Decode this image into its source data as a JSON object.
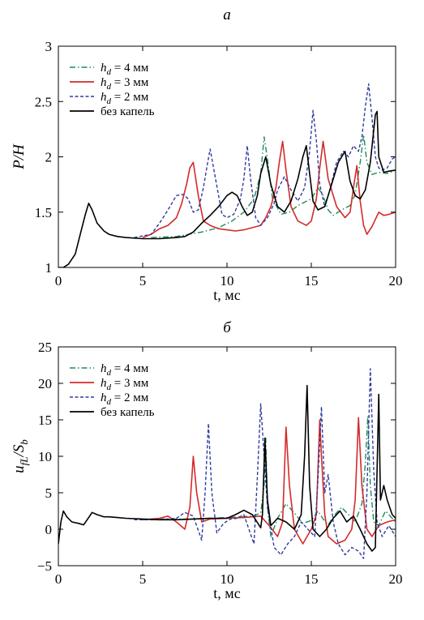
{
  "chart_data": [
    {
      "panel_label": "а",
      "type": "line",
      "xlabel": "t, мс",
      "ylabel": "P/H",
      "xlim": [
        0,
        20
      ],
      "ylim": [
        1,
        3
      ],
      "xticks": [
        0,
        5,
        10,
        15,
        20
      ],
      "yticks": [
        1,
        1.5,
        2,
        2.5,
        3
      ],
      "xtick_labels": [
        "0",
        "5",
        "10",
        "15",
        "20"
      ],
      "ytick_labels": [
        "1",
        "1.5",
        "2",
        "2.5",
        "3"
      ],
      "grid": false,
      "legend_position": "top-left",
      "series": [
        {
          "name": "h_d = 4 мм",
          "legend_main": "h",
          "legend_sub": "d",
          "legend_rest": " = 4 мм",
          "color": "#1b8c5a",
          "dash": "dashdot",
          "x": [
            5.5,
            7,
            8.5,
            9.5,
            10.3,
            11,
            11.6,
            12.0,
            12.2,
            12.4,
            12.7,
            13.2,
            13.7,
            14.2,
            15,
            15.4,
            15.7,
            16.0,
            16.3,
            16.8,
            17.3,
            17.6,
            17.9,
            18.1,
            18.3,
            18.6,
            19.0,
            19.5,
            20
          ],
          "y": [
            1.27,
            1.28,
            1.32,
            1.36,
            1.42,
            1.5,
            1.62,
            1.85,
            2.18,
            1.98,
            1.62,
            1.48,
            1.5,
            1.56,
            1.62,
            1.72,
            1.65,
            1.52,
            1.47,
            1.52,
            1.56,
            1.66,
            1.95,
            2.2,
            1.95,
            1.84,
            1.86,
            1.85,
            1.88
          ]
        },
        {
          "name": "h_d = 3 мм",
          "legend_main": "h",
          "legend_sub": "d",
          "legend_rest": " = 3 мм",
          "color": "#d42a2a",
          "dash": "solid",
          "x": [
            5.0,
            5.5,
            6.0,
            6.5,
            7.0,
            7.3,
            7.6,
            7.8,
            8.0,
            8.3,
            8.6,
            9.0,
            9.5,
            10.0,
            10.5,
            11.0,
            11.5,
            12.0,
            12.3,
            12.6,
            12.9,
            13.1,
            13.3,
            13.5,
            13.8,
            14.2,
            14.7,
            15.0,
            15.3,
            15.5,
            15.7,
            16.0,
            16.5,
            17.0,
            17.3,
            17.5,
            17.7,
            17.9,
            18.1,
            18.3,
            18.6,
            19.0,
            19.3,
            19.6,
            20
          ],
          "y": [
            1.27,
            1.3,
            1.35,
            1.38,
            1.45,
            1.57,
            1.75,
            1.9,
            1.95,
            1.65,
            1.42,
            1.38,
            1.35,
            1.34,
            1.33,
            1.34,
            1.36,
            1.38,
            1.45,
            1.55,
            1.72,
            1.95,
            2.14,
            1.88,
            1.55,
            1.42,
            1.38,
            1.42,
            1.62,
            1.9,
            2.14,
            1.8,
            1.55,
            1.45,
            1.5,
            1.72,
            1.92,
            1.6,
            1.38,
            1.3,
            1.37,
            1.5,
            1.47,
            1.48,
            1.5
          ]
        },
        {
          "name": "h_d = 2 мм",
          "legend_main": "h",
          "legend_sub": "d",
          "legend_rest": " = 2 мм",
          "color": "#2f3c9e",
          "dash": "dashed",
          "x": [
            4.5,
            5.5,
            6.0,
            6.5,
            7.0,
            7.4,
            7.7,
            8.0,
            8.3,
            8.6,
            8.8,
            9.0,
            9.3,
            9.7,
            10.0,
            10.4,
            10.8,
            11.0,
            11.2,
            11.4,
            11.7,
            12.0,
            12.4,
            12.8,
            13.0,
            13.4,
            13.8,
            14.2,
            14.6,
            14.9,
            15.1,
            15.3,
            15.5,
            15.8,
            16.1,
            16.5,
            16.9,
            17.2,
            17.5,
            17.8,
            18.0,
            18.2,
            18.4,
            18.6,
            18.8,
            19.0,
            19.2,
            19.5,
            19.8,
            20
          ],
          "y": [
            1.27,
            1.3,
            1.4,
            1.52,
            1.65,
            1.66,
            1.62,
            1.5,
            1.52,
            1.72,
            1.9,
            2.07,
            1.82,
            1.48,
            1.45,
            1.48,
            1.62,
            1.8,
            2.1,
            1.8,
            1.45,
            1.38,
            1.45,
            1.58,
            1.7,
            1.82,
            1.7,
            1.6,
            1.72,
            2.05,
            2.42,
            2.15,
            1.75,
            1.55,
            1.7,
            1.95,
            2.05,
            2.0,
            2.1,
            2.05,
            2.18,
            2.45,
            2.66,
            2.35,
            2.0,
            1.9,
            1.88,
            1.9,
            1.98,
            2.0
          ]
        },
        {
          "name": "без капель",
          "legend_main": "без капель",
          "legend_sub": "",
          "legend_rest": "",
          "color": "#000000",
          "dash": "solid",
          "x": [
            0,
            0.3,
            0.6,
            1.0,
            1.3,
            1.6,
            1.8,
            2.0,
            2.3,
            2.7,
            3.0,
            3.5,
            4.0,
            5.0,
            6.0,
            7.0,
            7.5,
            8.0,
            8.5,
            9.0,
            9.5,
            10.0,
            10.3,
            10.6,
            10.9,
            11.2,
            11.5,
            11.8,
            12.0,
            12.3,
            12.6,
            13.0,
            13.4,
            13.8,
            14.2,
            14.5,
            14.7,
            14.9,
            15.1,
            15.4,
            15.8,
            16.2,
            16.6,
            17.0,
            17.3,
            17.6,
            17.9,
            18.2,
            18.5,
            18.8,
            18.9,
            19.0,
            19.3,
            19.6,
            20
          ],
          "y": [
            1.0,
            1.0,
            1.03,
            1.12,
            1.3,
            1.48,
            1.58,
            1.52,
            1.4,
            1.33,
            1.3,
            1.28,
            1.27,
            1.26,
            1.26,
            1.27,
            1.28,
            1.32,
            1.4,
            1.47,
            1.55,
            1.65,
            1.68,
            1.65,
            1.55,
            1.47,
            1.5,
            1.65,
            1.85,
            2.0,
            1.75,
            1.55,
            1.5,
            1.6,
            1.8,
            2.0,
            2.1,
            1.85,
            1.6,
            1.52,
            1.55,
            1.75,
            1.95,
            2.05,
            1.78,
            1.65,
            1.62,
            1.7,
            1.95,
            2.38,
            2.41,
            2.0,
            1.86,
            1.87,
            1.88
          ]
        }
      ]
    },
    {
      "panel_label": "б",
      "type": "line",
      "xlabel": "t, мс",
      "ylabel": "u_fL/S_b",
      "ylabel_parts": [
        "u",
        "fL",
        "/S",
        "b"
      ],
      "xlim": [
        0,
        20
      ],
      "ylim": [
        -5,
        25
      ],
      "xticks": [
        0,
        5,
        10,
        15,
        20
      ],
      "yticks": [
        -5,
        0,
        5,
        10,
        15,
        20,
        25
      ],
      "xtick_labels": [
        "0",
        "5",
        "10",
        "15",
        "20"
      ],
      "ytick_labels": [
        "−5",
        "0",
        "5",
        "10",
        "15",
        "20",
        "25"
      ],
      "grid": false,
      "legend_position": "top-left",
      "series": [
        {
          "name": "h_d = 4 мм",
          "legend_main": "h",
          "legend_sub": "d",
          "legend_rest": " = 4 мм",
          "color": "#1b8c5a",
          "dash": "dashdot",
          "x": [
            6,
            8,
            10,
            11.5,
            12.0,
            12.2,
            12.3,
            12.4,
            12.6,
            13.0,
            13.5,
            14.0,
            14.5,
            15.0,
            15.4,
            15.7,
            16.0,
            16.4,
            16.8,
            17.2,
            17.6,
            18.0,
            18.2,
            18.35,
            18.5,
            18.7,
            19.0,
            19.4,
            20
          ],
          "y": [
            1.4,
            1.4,
            1.6,
            1.8,
            2.2,
            6.0,
            12.5,
            3.0,
            -1.0,
            1.5,
            3.5,
            2.2,
            0.8,
            1.2,
            2.5,
            1.4,
            0.6,
            2.0,
            3.0,
            2.0,
            1.0,
            3.5,
            9.0,
            15.5,
            6.0,
            1.0,
            0.5,
            2.5,
            1.0
          ]
        },
        {
          "name": "h_d = 3 мм",
          "legend_main": "h",
          "legend_sub": "d",
          "legend_rest": " = 3 мм",
          "color": "#d42a2a",
          "dash": "solid",
          "x": [
            5,
            6,
            6.5,
            7.0,
            7.5,
            7.8,
            8.0,
            8.2,
            8.5,
            9.0,
            10.0,
            11.0,
            12.0,
            12.5,
            13.0,
            13.3,
            13.5,
            13.7,
            14.0,
            14.5,
            15.0,
            15.3,
            15.5,
            15.6,
            15.8,
            16.0,
            16.5,
            17.0,
            17.4,
            17.6,
            17.8,
            18.0,
            18.3,
            18.6,
            19.0,
            19.5,
            20
          ],
          "y": [
            1.3,
            1.5,
            1.8,
            1.0,
            0.0,
            3.0,
            10.0,
            5.0,
            1.0,
            1.4,
            1.5,
            1.6,
            1.8,
            0.5,
            -1.0,
            1.0,
            14.0,
            6.0,
            0.0,
            -2.0,
            0.0,
            2.0,
            15.0,
            10.0,
            2.0,
            -1.0,
            -2.0,
            -1.5,
            0.0,
            4.0,
            15.3,
            6.0,
            0.0,
            -1.0,
            0.5,
            1.0,
            1.3
          ]
        },
        {
          "name": "h_d = 2 мм",
          "legend_main": "h",
          "legend_sub": "d",
          "legend_rest": " = 2 мм",
          "color": "#2f3c9e",
          "dash": "dashed",
          "x": [
            4.5,
            6,
            7.0,
            7.5,
            8.0,
            8.5,
            8.7,
            8.9,
            9.1,
            9.4,
            9.8,
            10.2,
            10.6,
            11.0,
            11.3,
            11.6,
            11.8,
            12.0,
            12.4,
            12.8,
            13.2,
            13.6,
            14.0,
            14.4,
            14.8,
            15.2,
            15.4,
            15.6,
            15.8,
            16.0,
            16.3,
            16.6,
            17.0,
            17.4,
            17.8,
            18.1,
            18.3,
            18.5,
            18.7,
            18.9,
            19.2,
            19.6,
            20
          ],
          "y": [
            1.3,
            1.3,
            1.5,
            2.3,
            1.8,
            -1.5,
            5.0,
            14.5,
            5.0,
            -0.5,
            0.8,
            1.4,
            1.5,
            2.0,
            0.0,
            -2.0,
            7.0,
            17.2,
            3.0,
            -2.5,
            -3.5,
            -2.0,
            -1.0,
            1.0,
            0.0,
            -1.0,
            7.0,
            16.8,
            5.0,
            7.5,
            1.0,
            -2.0,
            -3.5,
            -2.5,
            -3.0,
            -4.0,
            5.0,
            22.0,
            8.0,
            1.0,
            -1.0,
            0.5,
            -1.0
          ]
        },
        {
          "name": "без капель",
          "legend_main": "без капель",
          "legend_sub": "",
          "legend_rest": "",
          "color": "#000000",
          "dash": "solid",
          "x": [
            0,
            0.15,
            0.3,
            0.5,
            0.8,
            1.2,
            1.5,
            1.8,
            2.0,
            2.3,
            2.7,
            3.0,
            3.5,
            4.0,
            5.0,
            6.0,
            7.0,
            8.0,
            9.0,
            10.0,
            10.5,
            11.0,
            11.5,
            12.0,
            12.1,
            12.25,
            12.4,
            12.6,
            13.0,
            13.5,
            14.0,
            14.4,
            14.6,
            14.75,
            14.9,
            15.1,
            15.5,
            15.9,
            16.3,
            16.7,
            17.1,
            17.5,
            17.9,
            18.3,
            18.6,
            18.8,
            18.9,
            19.0,
            19.1,
            19.3,
            19.5,
            19.8,
            20
          ],
          "y": [
            -2.0,
            1.0,
            2.5,
            1.7,
            1.0,
            0.8,
            0.6,
            1.6,
            2.3,
            2.0,
            1.7,
            1.7,
            1.6,
            1.5,
            1.4,
            1.3,
            1.3,
            1.4,
            1.5,
            1.5,
            2.0,
            2.6,
            2.0,
            0.2,
            2.0,
            12.5,
            4.0,
            0.5,
            1.5,
            1.0,
            0.0,
            2.0,
            10.0,
            19.7,
            6.0,
            0.0,
            -1.0,
            0.0,
            1.5,
            2.5,
            1.0,
            1.8,
            0.0,
            -2.0,
            -3.0,
            -2.5,
            8.0,
            18.5,
            4.0,
            6.0,
            4.0,
            2.0,
            1.5
          ]
        }
      ]
    }
  ]
}
